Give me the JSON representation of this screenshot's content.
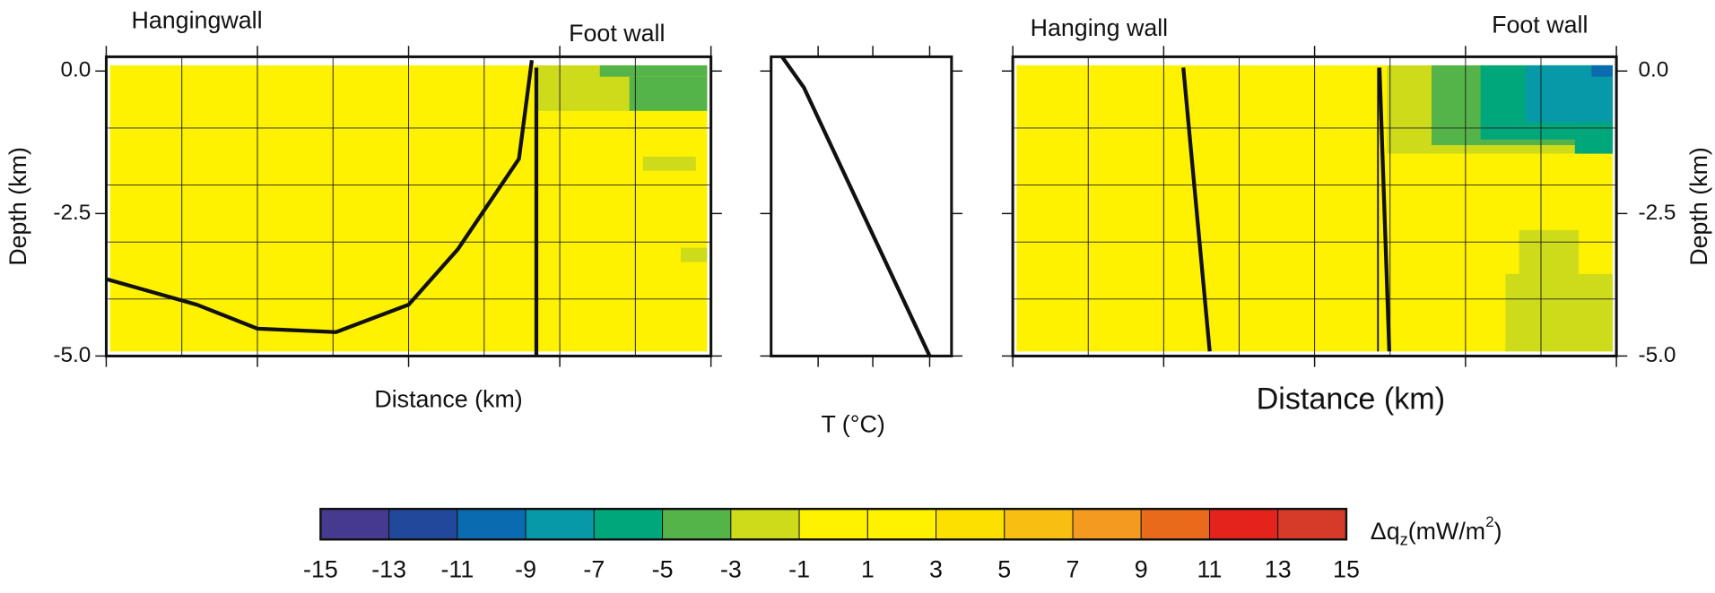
{
  "chart_data": [
    {
      "type": "heatmap",
      "labels": [
        "Hangingwall",
        "Foot wall"
      ],
      "xlabel": "Distance (km)",
      "ylabel": "Depth (km)",
      "ylabel_side": "left",
      "xlim": [
        0,
        8
      ],
      "ylim": [
        -5,
        0.25
      ],
      "xticks": [
        0,
        2,
        4,
        6,
        8
      ],
      "yticks": [
        {
          "value": 0,
          "label": "0.0"
        },
        {
          "value": -2.5,
          "label": "-2.5"
        },
        {
          "value": -5,
          "label": "-5.0"
        }
      ],
      "show_xtick_labels": false,
      "show_ytick_labels": true,
      "xgrid": [
        1,
        2,
        3,
        4,
        5,
        6,
        7
      ],
      "ygrid": [
        -1,
        -2,
        -3,
        -4
      ],
      "field": {
        "x": [
          0.05,
          7.95
        ],
        "y": [
          -4.92,
          0.1
        ],
        "value": 0
      },
      "cells": [
        {
          "x": [
            5.69,
            6.92
          ],
          "y": [
            -0.7,
            0.1
          ],
          "value": -2
        },
        {
          "x": [
            6.53,
            7.95
          ],
          "y": [
            -0.1,
            0.1
          ],
          "value": -4
        },
        {
          "x": [
            6.92,
            7.95
          ],
          "y": [
            -0.7,
            -0.1
          ],
          "value": -4
        },
        {
          "x": [
            7.1,
            7.8
          ],
          "y": [
            -1.75,
            -1.5
          ],
          "value": -2
        },
        {
          "x": [
            7.6,
            7.95
          ],
          "y": [
            -3.35,
            -3.1
          ],
          "value": -2
        }
      ],
      "lines": [
        {
          "x": [
            0,
            1.2,
            2.0,
            3.04,
            4.0,
            4.65,
            5.46,
            5.63
          ],
          "y": [
            -3.65,
            -4.1,
            -4.52,
            -4.58,
            -4.1,
            -3.13,
            -1.54,
            0.19
          ]
        },
        {
          "x": [
            5.69,
            5.69
          ],
          "y": [
            0.06,
            -5
          ]
        }
      ]
    },
    {
      "type": "line",
      "xlabel": "T (°C)",
      "xlim": [
        0,
        16.5
      ],
      "ylim": [
        -5,
        0.25
      ],
      "xticks": [
        4.3,
        9.3,
        14.5
      ],
      "yticks": [
        0,
        -2.5,
        -5
      ],
      "show_xtick_labels": false,
      "show_ytick_labels": false,
      "lines": [
        {
          "x": [
            1.0,
            3.0,
            14.5
          ],
          "y": [
            0.25,
            -0.29,
            -5
          ]
        }
      ]
    },
    {
      "type": "heatmap",
      "labels": [
        "Hanging wall",
        "Foot wall"
      ],
      "xlabel": "Distance (km)",
      "ylabel": "Depth (km)",
      "ylabel_side": "right",
      "xlim": [
        0,
        8
      ],
      "ylim": [
        -5,
        0.25
      ],
      "xticks": [
        0,
        2,
        4,
        6,
        8
      ],
      "yticks": [
        {
          "value": 0,
          "label": "0.0"
        },
        {
          "value": -2.5,
          "label": "-2.5"
        },
        {
          "value": -5,
          "label": "-5.0"
        }
      ],
      "show_xtick_labels": false,
      "show_ytick_labels": true,
      "xgrid": [
        1,
        2,
        3,
        4,
        5,
        6,
        7
      ],
      "ygrid": [
        -1,
        -2,
        -3,
        -4
      ],
      "field": {
        "x": [
          0.05,
          7.95
        ],
        "y": [
          -4.92,
          0.1
        ],
        "value": 0
      },
      "cells": [
        {
          "x": [
            4.96,
            7.95
          ],
          "y": [
            -1.45,
            0.1
          ],
          "value": -2
        },
        {
          "x": [
            5.55,
            7.95
          ],
          "y": [
            -1.3,
            0.1
          ],
          "value": -4
        },
        {
          "x": [
            6.2,
            7.95
          ],
          "y": [
            -1.2,
            0.1
          ],
          "value": -6
        },
        {
          "x": [
            7.45,
            7.95
          ],
          "y": [
            -1.45,
            -0.9
          ],
          "value": -6
        },
        {
          "x": [
            6.8,
            7.95
          ],
          "y": [
            -0.9,
            0.1
          ],
          "value": -8
        },
        {
          "x": [
            7.67,
            7.95
          ],
          "y": [
            -0.1,
            0.1
          ],
          "value": -10
        },
        {
          "x": [
            6.53,
            7.95
          ],
          "y": [
            -4.92,
            -3.56
          ],
          "value": -2
        },
        {
          "x": [
            6.71,
            7.5
          ],
          "y": [
            -3.56,
            -2.79
          ],
          "value": -2
        }
      ],
      "lines": [
        {
          "x": [
            2.26,
            2.61
          ],
          "y": [
            0.06,
            -4.92
          ]
        },
        {
          "x": [
            4.86,
            4.99
          ],
          "y": [
            0.06,
            -4.92
          ]
        },
        {
          "x": [
            4.84,
            4.84
          ],
          "y": [
            0.06,
            -4.92
          ]
        }
      ]
    },
    {
      "type": "colorbar",
      "label_parts": [
        "Δq",
        "z",
        "(mW/m",
        "2",
        ")"
      ],
      "bins": [
        -15,
        -13,
        -11,
        -9,
        -7,
        -5,
        -3,
        -1,
        1,
        3,
        5,
        7,
        9,
        11,
        13,
        15
      ],
      "colors": [
        "#463a8f",
        "#21489a",
        "#0b6bb0",
        "#0799a8",
        "#00a77b",
        "#55b449",
        "#cddb1b",
        "#fff200",
        "#fff200",
        "#fde000",
        "#f9be12",
        "#f39a1f",
        "#ea6a1b",
        "#e5231d",
        "#d63b29"
      ]
    }
  ]
}
